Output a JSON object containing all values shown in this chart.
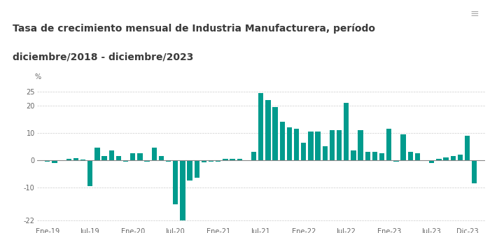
{
  "title_line1": "Tasa de crecimiento mensual de Industria Manufacturera, período",
  "title_line2": "diciembre/2018 - diciembre/2023",
  "title_fontsize": 10,
  "bar_color": "#009B8D",
  "background_color": "#ffffff",
  "header_background": "#eeeeee",
  "ylabel": "%",
  "ylim": [
    -24,
    27
  ],
  "yticks": [
    -22,
    -10,
    0,
    10,
    20,
    25
  ],
  "ytick_labels": [
    "-22",
    "-10",
    "0",
    "10",
    "20",
    "25"
  ],
  "tick_labels": [
    "Ene-19",
    "Jul-19",
    "Ene-20",
    "Jul-20",
    "Ene-21",
    "Jul-21",
    "Ene-22",
    "Jul-22",
    "Ene-23",
    "Jul-23",
    "Dic-23"
  ],
  "tick_positions": [
    0,
    6,
    12,
    18,
    24,
    30,
    36,
    42,
    48,
    54,
    59
  ],
  "values": [
    -0.5,
    -1.0,
    -0.3,
    0.5,
    0.8,
    0.3,
    -9.5,
    4.5,
    1.5,
    3.5,
    1.5,
    -0.5,
    2.5,
    2.5,
    -0.5,
    4.5,
    1.5,
    -0.5,
    -16.0,
    -22.0,
    -7.5,
    -6.5,
    -0.8,
    -0.5,
    -0.5,
    0.5,
    0.5,
    0.5,
    -0.3,
    3.0,
    24.5,
    22.0,
    19.5,
    14.0,
    12.0,
    11.5,
    6.5,
    10.5,
    10.5,
    5.0,
    11.0,
    11.0,
    21.0,
    3.5,
    11.0,
    3.0,
    3.0,
    2.5,
    11.5,
    -0.5,
    9.5,
    3.0,
    2.5,
    -0.3,
    -1.0,
    0.5,
    1.0,
    1.5,
    2.0,
    9.0,
    -8.5
  ]
}
